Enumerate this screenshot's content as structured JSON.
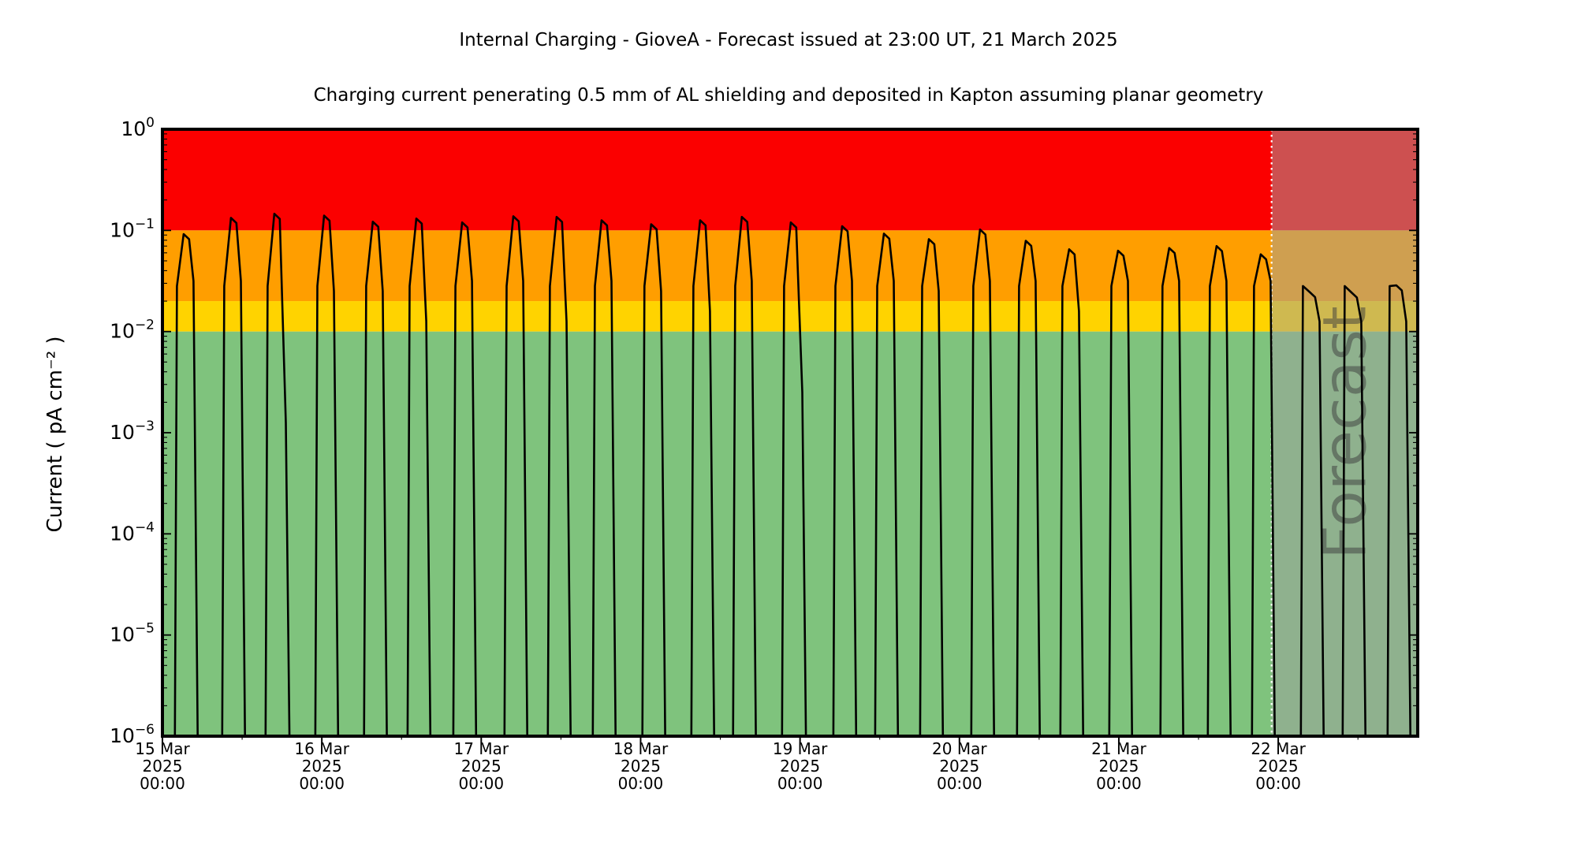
{
  "header": {
    "title": "Internal Charging - GioveA - Forecast issued at 23:00 UT, 21 March 2025",
    "subtitle": "Charging current penerating 0.5 mm of AL shielding and deposited in Kapton assuming planar geometry"
  },
  "axes": {
    "y_label": "Current ( pA cm⁻² )"
  },
  "colors": {
    "red_band": "#fb0000",
    "orange_band": "#ff9e00",
    "yellow_band": "#ffd300",
    "green_band": "#7fc37d",
    "forecast_overlay": "rgba(160,160,160,0.5)",
    "forecast_line": "#ffffff",
    "watermark": "rgba(60,60,60,0.5)",
    "trace": "#000000",
    "frame": "#000000"
  },
  "chart_data": {
    "type": "line",
    "title": "Internal Charging - GioveA - Forecast issued at 23:00 UT, 21 March 2025",
    "subtitle": "Charging current penerating 0.5 mm of AL shielding and deposited in Kapton assuming planar geometry",
    "ylabel": "Current ( pA cm⁻² )",
    "y_scale": "log",
    "ylim": [
      1e-06,
      1
    ],
    "y_tick_exponents": [
      "0",
      "−1",
      "−2",
      "−3",
      "−4",
      "−5",
      "−6"
    ],
    "x_range_days": [
      0,
      7.875
    ],
    "x_major_tick_days": [
      0,
      1,
      2,
      3,
      4,
      5,
      6,
      7
    ],
    "x_minor_tick_step_days": 0.5,
    "x_tick_labels": [
      {
        "date": "15 Mar",
        "year": "2025",
        "time": "00:00"
      },
      {
        "date": "16 Mar",
        "year": "2025",
        "time": "00:00"
      },
      {
        "date": "17 Mar",
        "year": "2025",
        "time": "00:00"
      },
      {
        "date": "18 Mar",
        "year": "2025",
        "time": "00:00"
      },
      {
        "date": "19 Mar",
        "year": "2025",
        "time": "00:00"
      },
      {
        "date": "20 Mar",
        "year": "2025",
        "time": "00:00"
      },
      {
        "date": "21 Mar",
        "year": "2025",
        "time": "00:00"
      },
      {
        "date": "22 Mar",
        "year": "2025",
        "time": "00:00"
      }
    ],
    "bands": [
      {
        "level": "red",
        "min": 0.1,
        "max": 1.0
      },
      {
        "level": "orange",
        "min": 0.02,
        "max": 0.1
      },
      {
        "level": "yellow",
        "min": 0.01,
        "max": 0.02
      },
      {
        "level": "green",
        "min": 1e-06,
        "max": 0.01
      }
    ],
    "forecast": {
      "start_day": 6.9583,
      "watermark": "Forecast"
    },
    "spike_fields": [
      "time_days_since_15_Mar_00UT",
      "peak_current_pA_cm2",
      "descent_knee_log10"
    ],
    "spikes": [
      [
        0.153,
        0.092,
        -1.5
      ],
      [
        0.45,
        0.133,
        -1.5
      ],
      [
        0.722,
        0.146,
        -2.9
      ],
      [
        1.034,
        0.14,
        -1.6
      ],
      [
        1.34,
        0.122,
        -1.6
      ],
      [
        1.613,
        0.131,
        -1.9
      ],
      [
        1.9,
        0.12,
        -1.5
      ],
      [
        2.221,
        0.138,
        -1.5
      ],
      [
        2.493,
        0.136,
        -1.9
      ],
      [
        2.775,
        0.126,
        -1.5
      ],
      [
        3.086,
        0.115,
        -1.6
      ],
      [
        3.393,
        0.126,
        -1.8
      ],
      [
        3.655,
        0.136,
        -1.5
      ],
      [
        3.962,
        0.12,
        -2.6
      ],
      [
        4.284,
        0.11,
        -1.5
      ],
      [
        4.546,
        0.093,
        -1.5
      ],
      [
        4.828,
        0.082,
        -1.6
      ],
      [
        5.149,
        0.102,
        -1.5
      ],
      [
        5.436,
        0.079,
        -1.5
      ],
      [
        5.708,
        0.065,
        -1.8
      ],
      [
        6.015,
        0.063,
        -1.5
      ],
      [
        6.336,
        0.067,
        -1.5
      ],
      [
        6.633,
        0.07,
        -1.5
      ],
      [
        6.91,
        0.058,
        -1.5
      ],
      [
        7.217,
        0.0246,
        -1.9
      ],
      [
        7.479,
        0.0244,
        -1.9
      ],
      [
        7.761,
        0.0286,
        -1.9
      ]
    ],
    "baseline": 1e-06,
    "grid": false,
    "legend": false
  }
}
